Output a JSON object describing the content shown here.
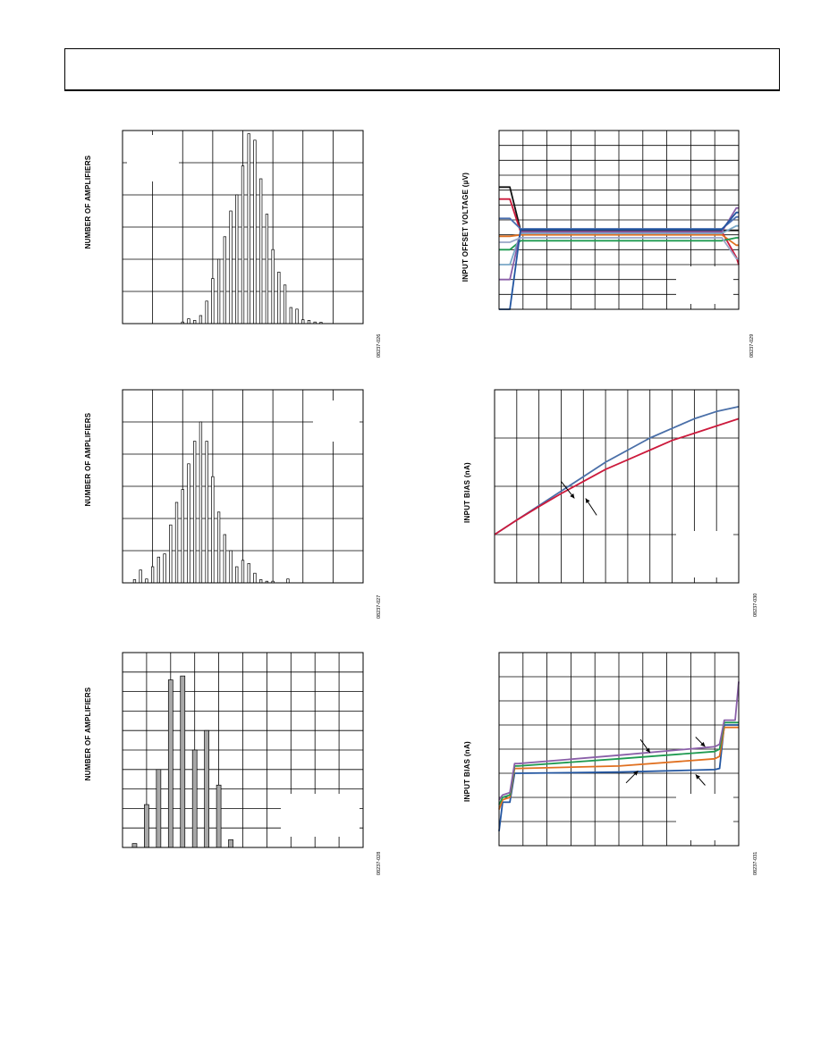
{
  "page": {
    "header": ""
  },
  "charts": [
    {
      "id": "c1",
      "type": "bar",
      "ylabel": "NUMBER OF AMPLIFIERS",
      "fig_id": "08237-026",
      "x_divisions": 8,
      "y_divisions": 6,
      "label_box": {
        "corner": "top-left"
      },
      "bar_style": "thin",
      "x_range": [
        0,
        8
      ],
      "y_range": [
        0,
        6
      ],
      "bar_x": [
        2.0,
        2.2,
        2.4,
        2.6,
        2.8,
        3.0,
        3.2,
        3.4,
        3.6,
        3.8,
        4.0,
        4.2,
        4.4,
        4.6,
        4.8,
        5.0,
        5.2,
        5.4,
        5.6,
        5.8,
        6.0,
        6.2,
        6.4,
        6.6
      ],
      "bar_values": [
        0.05,
        0.15,
        0.1,
        0.25,
        0.7,
        1.4,
        2.0,
        2.7,
        3.5,
        4.0,
        4.9,
        5.9,
        5.7,
        4.5,
        3.4,
        2.3,
        1.6,
        1.2,
        0.5,
        0.45,
        0.12,
        0.1,
        0.05,
        0.04
      ]
    },
    {
      "id": "c2",
      "type": "bar",
      "ylabel": "NUMBER OF AMPLIFIERS",
      "fig_id": "08237-027",
      "x_divisions": 8,
      "y_divisions": 6,
      "label_box": {
        "corner": "top-right"
      },
      "bar_style": "thin",
      "x_range": [
        0,
        8
      ],
      "y_range": [
        0,
        6
      ],
      "bar_x": [
        0.4,
        0.6,
        0.8,
        1.0,
        1.2,
        1.4,
        1.6,
        1.8,
        2.0,
        2.2,
        2.4,
        2.6,
        2.8,
        3.0,
        3.2,
        3.4,
        3.6,
        3.8,
        4.0,
        4.2,
        4.4,
        4.6,
        4.8,
        5.0,
        5.5
      ],
      "bar_values": [
        0.1,
        0.4,
        0.12,
        0.5,
        0.8,
        0.9,
        1.8,
        2.5,
        2.9,
        3.7,
        4.4,
        5.0,
        4.4,
        3.3,
        2.2,
        1.5,
        1.0,
        0.5,
        0.7,
        0.6,
        0.3,
        0.1,
        0.05,
        0.05,
        0.12
      ]
    },
    {
      "id": "c3",
      "type": "bar",
      "ylabel": "NUMBER OF AMPLIFIERS",
      "fig_id": "08237-028",
      "x_divisions": 10,
      "y_divisions": 10,
      "label_box": {
        "corner": "bottom-right"
      },
      "bar_style": "wide",
      "x_range": [
        0,
        10
      ],
      "y_range": [
        0,
        10
      ],
      "bar_x": [
        0.5,
        1.0,
        1.5,
        2.0,
        2.5,
        3.0,
        3.5,
        4.0,
        4.5
      ],
      "bar_values": [
        0.2,
        2.2,
        4.0,
        8.6,
        8.8,
        5.0,
        6.0,
        3.2,
        0.4
      ]
    },
    {
      "id": "c4",
      "type": "line",
      "ylabel": "INPUT OFFSET VOLTAGE (µV)",
      "fig_id": "08237-029",
      "x_divisions": 10,
      "y_divisions": 12,
      "label_box": {
        "corner": "bottom-right"
      },
      "x_range": [
        0,
        10
      ],
      "y_range": [
        0,
        12
      ],
      "series": [
        {
          "color": "#111111",
          "y": [
            8.2,
            8.2,
            5.3,
            5.3,
            5.3,
            5.3,
            5.3,
            5.3,
            5.3,
            5.3,
            5.3,
            5.3
          ]
        },
        {
          "color": "#cc1a3c",
          "y": [
            7.4,
            7.4,
            5.2,
            5.2,
            5.2,
            5.2,
            5.2,
            5.2,
            5.2,
            5.2,
            3.5,
            3.0
          ]
        },
        {
          "color": "#4a6fb0",
          "y": [
            6.1,
            6.1,
            5.4,
            5.4,
            5.4,
            5.4,
            5.4,
            5.4,
            5.4,
            5.4,
            6.2,
            6.2
          ]
        },
        {
          "color": "#e07020",
          "y": [
            4.9,
            4.9,
            5.0,
            5.0,
            5.0,
            5.0,
            5.0,
            5.0,
            5.0,
            5.0,
            4.3,
            4.3
          ]
        },
        {
          "color": "#1e9a50",
          "y": [
            4.0,
            4.0,
            4.6,
            4.6,
            4.6,
            4.6,
            4.6,
            4.6,
            4.6,
            4.6,
            4.8,
            4.8
          ]
        },
        {
          "color": "#7aa8c8",
          "y": [
            3.0,
            3.0,
            5.1,
            5.1,
            5.1,
            5.1,
            5.1,
            5.1,
            5.1,
            5.1,
            5.6,
            5.6
          ]
        },
        {
          "color": "#8a5fa8",
          "y": [
            2.0,
            2.0,
            5.2,
            5.2,
            5.2,
            5.2,
            5.2,
            5.2,
            5.2,
            5.2,
            6.8,
            6.8
          ]
        },
        {
          "color": "#2255a0",
          "y": [
            0.0,
            0.0,
            5.35,
            5.35,
            5.35,
            5.35,
            5.35,
            5.35,
            5.35,
            5.35,
            6.5,
            6.5
          ]
        },
        {
          "color": "#9aa8c8",
          "y": [
            4.5,
            4.5,
            4.8,
            4.8,
            4.8,
            4.8,
            4.8,
            4.8,
            4.8,
            4.8,
            3.4,
            3.4
          ]
        }
      ],
      "x": [
        0,
        0.45,
        0.9,
        2,
        3,
        4,
        5,
        6,
        7,
        9.3,
        9.9,
        10
      ]
    },
    {
      "id": "c5",
      "type": "line",
      "ylabel": "INPUT BIAS (nA)",
      "fig_id": "08237-030",
      "x_divisions": 11,
      "y_divisions": 4,
      "label_box": {
        "corner": "bottom-right"
      },
      "x_range": [
        0,
        11
      ],
      "y_range": [
        0,
        4
      ],
      "series": [
        {
          "color": "#4a6fa8",
          "y": [
            1.0,
            1.3,
            1.6,
            1.9,
            2.2,
            2.5,
            2.75,
            3.0,
            3.2,
            3.4,
            3.55,
            3.65
          ]
        },
        {
          "color": "#cc1a3c",
          "y": [
            1.0,
            1.3,
            1.58,
            1.85,
            2.1,
            2.35,
            2.55,
            2.75,
            2.95,
            3.1,
            3.25,
            3.4
          ]
        }
      ],
      "x": [
        0,
        1,
        2,
        3,
        4,
        5,
        6,
        7,
        8,
        9,
        10,
        11
      ],
      "arrows": [
        {
          "x1": 3.0,
          "y1": 2.1,
          "x2": 3.6,
          "y2": 1.75
        },
        {
          "x1": 4.6,
          "y1": 1.4,
          "x2": 4.1,
          "y2": 1.75
        }
      ]
    },
    {
      "id": "c6",
      "type": "line",
      "ylabel": "INPUT BIAS (nA)",
      "fig_id": "08237-031",
      "x_divisions": 10,
      "y_divisions": 8,
      "label_box": {
        "corner": "bottom-right"
      },
      "x_range": [
        0,
        10
      ],
      "y_range": [
        0,
        8
      ],
      "x": [
        0,
        0.15,
        0.45,
        0.65,
        0.8,
        5,
        9.0,
        9.2,
        9.4,
        9.85,
        10
      ],
      "series": [
        {
          "color": "#2255a0",
          "y": [
            0.6,
            1.8,
            1.8,
            3.0,
            3.0,
            3.05,
            3.15,
            3.2,
            5.0,
            5.0,
            5.0
          ]
        },
        {
          "color": "#e07020",
          "y": [
            1.5,
            1.9,
            2.0,
            3.2,
            3.2,
            3.3,
            3.6,
            3.7,
            4.9,
            4.9,
            4.9
          ]
        },
        {
          "color": "#1e9a50",
          "y": [
            1.7,
            2.0,
            2.1,
            3.3,
            3.3,
            3.6,
            3.9,
            4.0,
            5.1,
            5.1,
            5.1
          ]
        },
        {
          "color": "#8a5fa8",
          "y": [
            1.9,
            2.1,
            2.2,
            3.4,
            3.4,
            3.75,
            4.1,
            4.2,
            5.2,
            5.2,
            6.8
          ]
        }
      ],
      "arrows": [
        {
          "x1": 5.9,
          "y1": 4.4,
          "x2": 6.3,
          "y2": 3.85
        },
        {
          "x1": 8.2,
          "y1": 4.5,
          "x2": 8.6,
          "y2": 4.1
        },
        {
          "x1": 5.3,
          "y1": 2.6,
          "x2": 5.8,
          "y2": 3.1
        },
        {
          "x1": 8.6,
          "y1": 2.5,
          "x2": 8.2,
          "y2": 2.95
        }
      ]
    }
  ]
}
